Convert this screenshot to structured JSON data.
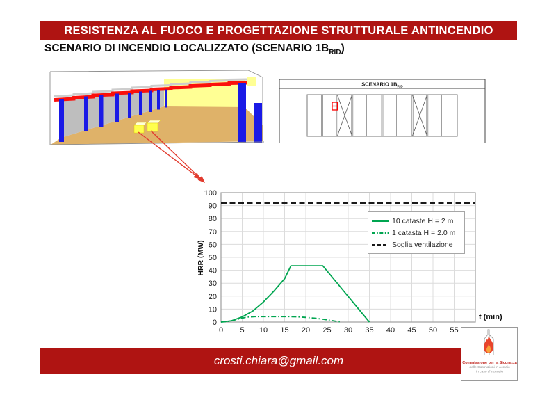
{
  "slide": {
    "banner_text": "RESISTENZA AL FUOCO E PROGETTAZIONE STRUTTURALE ANTINCENDIO",
    "title": {
      "prefix": "SCENARIO DI INCENDIO LOCALIZZATO (SCENARIO 1B",
      "subscript": "RID",
      "suffix": ")"
    },
    "footer": {
      "email": "crosti.chiara@gmail.com"
    },
    "logo": {
      "line1": "Commissione per la Sicurezza",
      "line2": "delle Costruzioni in Acciaio",
      "line3": "in caso d'Incendio"
    }
  },
  "schematic": {
    "title_prefix": "SCENARIO 1B",
    "title_subscript": "RID",
    "bays": 10,
    "braced_bays": [
      3,
      8
    ]
  },
  "colors": {
    "accent_red": "#AF1412",
    "chart_green": "#00A550",
    "grid_gray": "#DCDCDC",
    "floor_tan": "#DFB269",
    "wall_yellow": "#FFFF94",
    "column_blue": "#1A1AE6",
    "beam_red": "#FB100C",
    "arrow_red": "#E23B2E",
    "marker_red": "#FF0000",
    "flame_red": "#E8442C"
  },
  "chart_data": {
    "type": "line",
    "title": "",
    "xlabel": "t (min)",
    "ylabel": "HRR (MW)",
    "xlim": [
      0,
      60
    ],
    "ylim": [
      0,
      100
    ],
    "x_ticks": [
      0,
      5,
      10,
      15,
      20,
      25,
      30,
      35,
      40,
      45,
      50,
      55
    ],
    "y_ticks": [
      0,
      10,
      20,
      30,
      40,
      50,
      60,
      70,
      80,
      90,
      100
    ],
    "grid": true,
    "legend_position": "upper right",
    "threshold": 92,
    "series": [
      {
        "name": "10 cataste H = 2 m",
        "color": "#00A550",
        "style": "solid",
        "points": [
          [
            0,
            0
          ],
          [
            2.5,
            1
          ],
          [
            5,
            4
          ],
          [
            7.5,
            8.5
          ],
          [
            10,
            15.5
          ],
          [
            12.5,
            24
          ],
          [
            15,
            33.5
          ],
          [
            16.5,
            43.5
          ],
          [
            24,
            43.5
          ],
          [
            35,
            0
          ]
        ]
      },
      {
        "name": "1 catasta H = 2.0 m",
        "color": "#00A550",
        "style": "dashdot",
        "points": [
          [
            0,
            0
          ],
          [
            2,
            0.6
          ],
          [
            4,
            2.2
          ],
          [
            6,
            3.8
          ],
          [
            8,
            4.2
          ],
          [
            12,
            4.2
          ],
          [
            16,
            4.2
          ],
          [
            18,
            4
          ],
          [
            20,
            3.6
          ],
          [
            22,
            3
          ],
          [
            24,
            2.2
          ],
          [
            26,
            1.2
          ],
          [
            28,
            0.2
          ]
        ]
      },
      {
        "name": "Soglia ventilazione",
        "color": "#1A1A1A",
        "style": "dashed",
        "points": [
          [
            0,
            92
          ],
          [
            60,
            92
          ]
        ]
      }
    ]
  }
}
